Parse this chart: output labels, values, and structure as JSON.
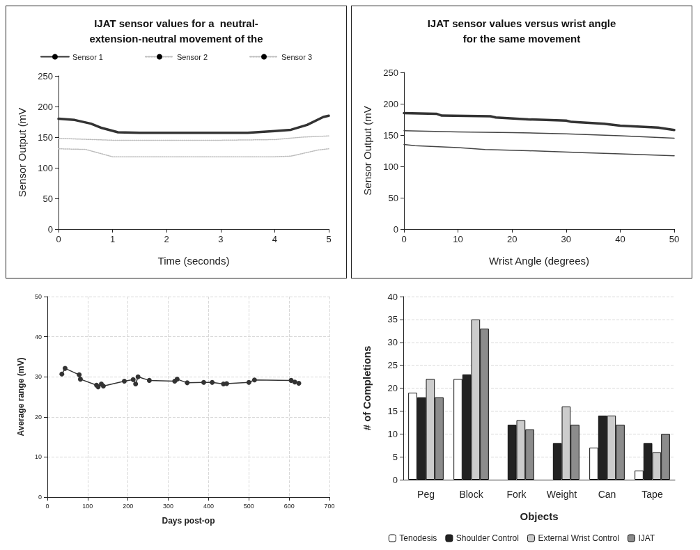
{
  "chart_data": [
    {
      "type": "line",
      "title": "IJAT sensor values for a  neutral-\nextension-neutral movement of the",
      "xlabel": "Time (seconds)",
      "ylabel": "Sensor Output (mV",
      "xlim": [
        0,
        5
      ],
      "xticks": [
        0,
        1,
        2,
        3,
        4,
        5
      ],
      "ylim": [
        0,
        250
      ],
      "yticks": [
        0,
        50,
        100,
        150,
        200,
        250
      ],
      "grid": false,
      "legend": "top",
      "marker": "none",
      "series": [
        {
          "name": "Sensor 1",
          "color": "#333333",
          "line_style": "solid",
          "x": [
            0,
            0.3,
            0.6,
            0.8,
            1.1,
            1.5,
            2.5,
            3.5,
            4,
            4.3,
            4.6,
            4.9,
            5
          ],
          "values": [
            180,
            178,
            172,
            165,
            158,
            157,
            157,
            157,
            160,
            162,
            170,
            183,
            185
          ]
        },
        {
          "name": "Sensor 2",
          "color": "#bbbbbb",
          "line_style": "dotted",
          "x": [
            0,
            1,
            2,
            3,
            4,
            4.5,
            5
          ],
          "values": [
            148,
            145,
            145,
            145,
            146,
            150,
            152
          ]
        },
        {
          "name": "Sensor 3",
          "color": "#bbbbbb",
          "line_style": "dotted",
          "x": [
            0,
            0.5,
            1,
            2,
            3,
            4,
            4.3,
            4.8,
            5
          ],
          "values": [
            131,
            130,
            118,
            118,
            118,
            118,
            119,
            129,
            131
          ]
        }
      ]
    },
    {
      "type": "line",
      "title": "IJAT sensor values versus wrist angle\nfor the same movement",
      "xlabel": "Wrist Angle (degrees)",
      "ylabel": "Sensor Output (mV",
      "xlim": [
        0,
        50
      ],
      "xticks": [
        0,
        10,
        20,
        30,
        40,
        50
      ],
      "ylim": [
        0,
        250
      ],
      "yticks": [
        0,
        50,
        100,
        150,
        200,
        250
      ],
      "grid": false,
      "legend": false,
      "marker": "none",
      "series": [
        {
          "color": "#333333",
          "x": [
            0,
            6,
            7,
            16,
            17,
            23,
            30,
            31,
            37,
            40,
            47,
            50
          ],
          "values": [
            185,
            184,
            181,
            180,
            178,
            175,
            173,
            171,
            168,
            165,
            162,
            158
          ]
        },
        {
          "color": "#444444",
          "x": [
            0,
            10,
            20,
            30,
            40,
            50
          ],
          "values": [
            157,
            155,
            154,
            152,
            149,
            145
          ]
        },
        {
          "color": "#444444",
          "x": [
            0,
            2,
            10,
            15,
            23,
            33,
            40,
            50
          ],
          "values": [
            135,
            133,
            130,
            127,
            125,
            122,
            120,
            117
          ]
        }
      ]
    },
    {
      "type": "line",
      "xlabel": "Days post-op",
      "ylabel": "Average range (mV)",
      "xlim": [
        0,
        700
      ],
      "xticks": [
        0,
        100,
        200,
        300,
        400,
        500,
        600,
        700
      ],
      "ylim": [
        0,
        50
      ],
      "yticks": [
        0,
        10,
        20,
        30,
        40,
        50
      ],
      "grid": true,
      "legend": false,
      "marker": "circle",
      "line_style": "solid",
      "x": [
        36,
        44,
        79,
        82,
        122,
        126,
        134,
        139,
        191,
        213,
        219,
        225,
        253,
        316,
        322,
        347,
        388,
        409,
        437,
        445,
        500,
        514,
        605,
        614,
        624
      ],
      "series": [
        {
          "color": "#333333",
          "values": [
            30.7,
            32.1,
            30.5,
            29.4,
            27.9,
            27.5,
            28.2,
            27.7,
            28.9,
            29.3,
            28.2,
            30.0,
            29.1,
            28.9,
            29.4,
            28.5,
            28.6,
            28.6,
            28.2,
            28.3,
            28.6,
            29.2,
            29.1,
            28.7,
            28.4
          ]
        }
      ]
    },
    {
      "type": "bar",
      "xlabel": "Objects",
      "ylabel": "# of Completions",
      "categories": [
        "Peg",
        "Block",
        "Fork",
        "Weight",
        "Can",
        "Tape"
      ],
      "ylim": [
        0,
        40
      ],
      "yticks": [
        0,
        5,
        10,
        15,
        20,
        25,
        30,
        35,
        40
      ],
      "grid": "y",
      "legend": "bottom",
      "series": [
        {
          "name": "Tenodesis",
          "color": "#ffffff",
          "values": [
            19,
            22,
            null,
            null,
            7,
            2
          ]
        },
        {
          "name": "Shoulder Control",
          "color": "#222222",
          "values": [
            18,
            23,
            12,
            8,
            14,
            8
          ]
        },
        {
          "name": "External Wrist Control",
          "color": "#cccccc",
          "values": [
            22,
            35,
            13,
            16,
            14,
            6
          ]
        },
        {
          "name": "IJAT",
          "color": "#8c8c8c",
          "values": [
            18,
            33,
            11,
            12,
            12,
            10
          ]
        }
      ]
    }
  ]
}
